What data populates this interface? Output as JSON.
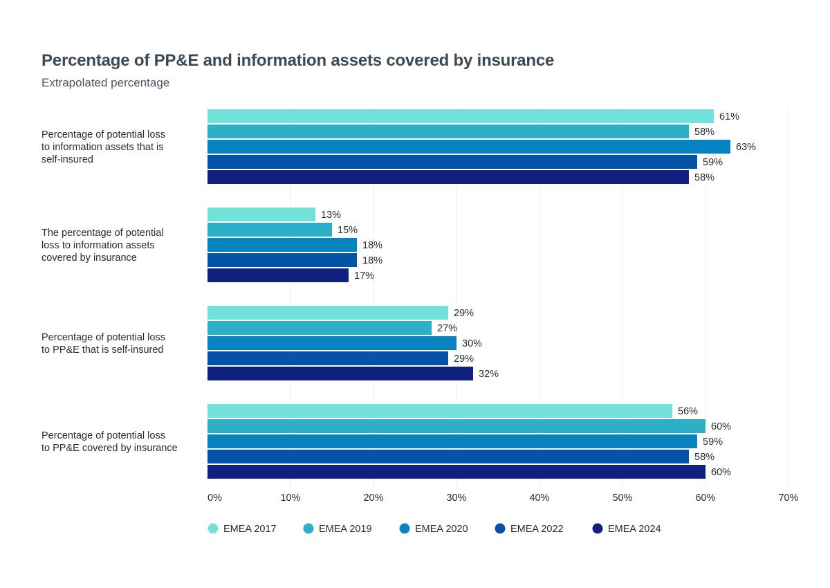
{
  "chart_data": {
    "type": "bar",
    "orientation": "horizontal",
    "title": "Percentage of PP&E and information assets covered by insurance",
    "subtitle": "Extrapolated percentage",
    "categories": [
      [
        "Percentage of potential loss",
        "to information assets that is",
        "self-insured"
      ],
      [
        "The percentage of potential",
        "loss to information assets",
        "covered by insurance"
      ],
      [
        "Percentage of potential loss",
        "to PP&E that is self-insured"
      ],
      [
        "Percentage of potential loss",
        "to PP&E covered by insurance"
      ]
    ],
    "series": [
      {
        "name": "EMEA 2017",
        "color": "#74e0da",
        "values": [
          61,
          13,
          29,
          56
        ]
      },
      {
        "name": "EMEA 2019",
        "color": "#2bb0c6",
        "values": [
          58,
          15,
          27,
          60
        ]
      },
      {
        "name": "EMEA 2020",
        "color": "#0784bf",
        "values": [
          63,
          18,
          30,
          59
        ]
      },
      {
        "name": "EMEA 2022",
        "color": "#0553a6",
        "values": [
          59,
          18,
          29,
          58
        ]
      },
      {
        "name": "EMEA 2024",
        "color": "#11207c",
        "values": [
          58,
          17,
          32,
          60
        ]
      }
    ],
    "value_suffix": "%",
    "xlim": [
      0,
      70
    ],
    "xticks": [
      0,
      10,
      20,
      30,
      40,
      50,
      60,
      70
    ],
    "xtick_labels": [
      "0%",
      "10%",
      "20%",
      "30%",
      "40%",
      "50%",
      "60%",
      "70%"
    ],
    "grid": true,
    "legend_position": "bottom"
  }
}
